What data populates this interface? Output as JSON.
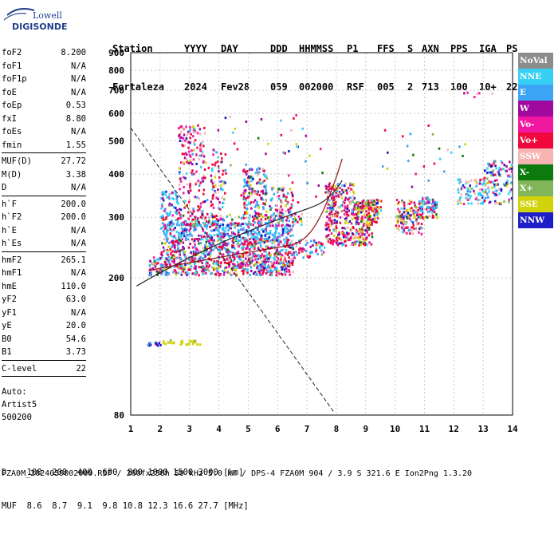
{
  "logo": {
    "line1": "Lowell",
    "line2": "DIGISONDE"
  },
  "header": {
    "labels": [
      "Station",
      "YYYY",
      "DAY",
      "DDD",
      "HHMMSS",
      "P1",
      "FFS",
      "S",
      "AXN",
      "PPS",
      "IGA",
      "PS"
    ],
    "values": [
      "Fortaleza",
      "2024",
      "Fev28",
      "059",
      "002000",
      "RSF",
      "005",
      "2",
      "713",
      "100",
      "10+",
      "22"
    ]
  },
  "params": {
    "group1": [
      {
        "k": "foF2",
        "v": "8.200"
      },
      {
        "k": "foF1",
        "v": "N/A"
      },
      {
        "k": "foF1p",
        "v": "N/A"
      },
      {
        "k": "foE",
        "v": "N/A"
      },
      {
        "k": "foEp",
        "v": "0.53"
      },
      {
        "k": "fxI",
        "v": "8.80"
      },
      {
        "k": "foEs",
        "v": "N/A"
      },
      {
        "k": "fmin",
        "v": "1.55"
      }
    ],
    "group2": [
      {
        "k": "MUF(D)",
        "v": "27.72"
      },
      {
        "k": "M(D)",
        "v": "3.38"
      },
      {
        "k": "D",
        "v": "N/A"
      }
    ],
    "group3": [
      {
        "k": "h`F",
        "v": "200.0"
      },
      {
        "k": "h`F2",
        "v": "200.0"
      },
      {
        "k": "h`E",
        "v": "N/A"
      },
      {
        "k": "h`Es",
        "v": "N/A"
      }
    ],
    "group4": [
      {
        "k": "hmF2",
        "v": "265.1"
      },
      {
        "k": "hmF1",
        "v": "N/A"
      },
      {
        "k": "hmE",
        "v": "110.0"
      },
      {
        "k": "yF2",
        "v": "63.0"
      },
      {
        "k": "yF1",
        "v": "N/A"
      },
      {
        "k": "yE",
        "v": "20.0"
      },
      {
        "k": "B0",
        "v": "54.6"
      },
      {
        "k": "B1",
        "v": "3.73"
      }
    ],
    "group5": [
      {
        "k": "C-level",
        "v": "22"
      }
    ]
  },
  "auto": {
    "l1": "Auto:",
    "l2": "Artist5",
    "l3": "500200"
  },
  "legend": [
    {
      "label": "NoVal",
      "color": "#8c8c8c"
    },
    {
      "label": "NNE",
      "color": "#37d0f5"
    },
    {
      "label": "E",
      "color": "#3da5f5"
    },
    {
      "label": "W",
      "color": "#a0089e"
    },
    {
      "label": "Vo-",
      "color": "#f018a0"
    },
    {
      "label": "Vo+",
      "color": "#f0083c"
    },
    {
      "label": "SSW",
      "color": "#f5b3b3"
    },
    {
      "label": "X-",
      "color": "#0c7a0c"
    },
    {
      "label": "X+",
      "color": "#82b55a"
    },
    {
      "label": "SSE",
      "color": "#d2d20a"
    },
    {
      "label": "NNW",
      "color": "#1e1ec8"
    }
  ],
  "chart_data": {
    "type": "scatter",
    "x_ticks": [
      "1",
      "2",
      "3",
      "4",
      "5",
      "6",
      "7",
      "8",
      "9",
      "10",
      "11",
      "12",
      "13",
      "14"
    ],
    "y_ticks": [
      "80",
      "200",
      "300",
      "400",
      "500",
      "600",
      "700",
      "800",
      "900"
    ],
    "xlim": [
      1,
      14
    ],
    "ylim": [
      80,
      900
    ],
    "grid": true,
    "y_log": true
  },
  "footer": {
    "line1": "D    100  200  400  600  800 1000 1500 3000 [km]",
    "line2": "MUF  8.6  8.7  9.1  9.8 10.8 12.3 16.6 27.7 [MHz]",
    "line3": "FZA0M_2024059002000.RSF / 260fx256h 50 kHz 5.0 km / DPS-4 FZA0M 904 / 3.9 S 321.6 E   Ion2Png 1.3.20"
  }
}
